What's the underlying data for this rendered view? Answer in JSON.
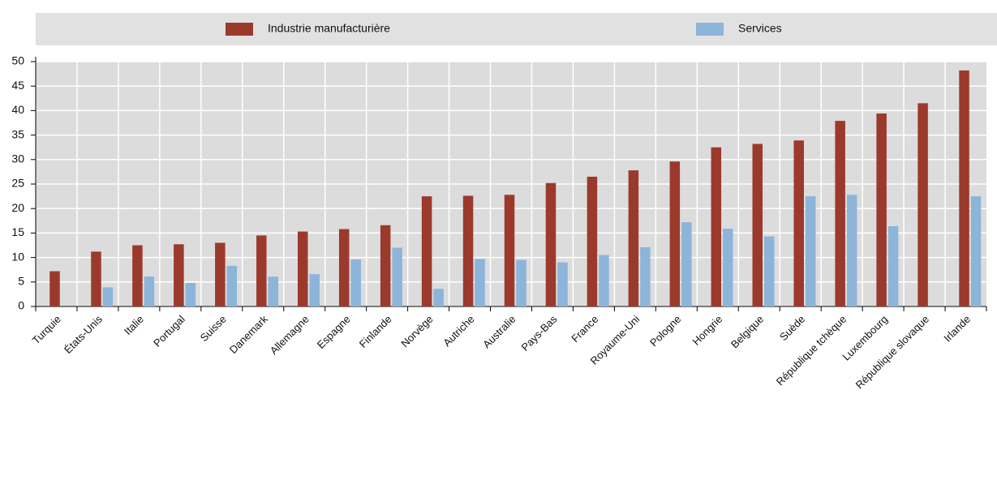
{
  "chart_data": {
    "type": "bar",
    "categories": [
      "Turquie",
      "États-Unis",
      "Italie",
      "Portugal",
      "Suisse",
      "Danemark",
      "Allemagne",
      "Espagne",
      "Finlande",
      "Norvège",
      "Autriche",
      "Australie",
      "Pays-Bas",
      "France",
      "Royaume-Uni",
      "Pologne",
      "Hongrie",
      "Belgique",
      "Suède",
      "République tchèque",
      "Luxembourg",
      "République slovaque",
      "Irlande"
    ],
    "series": [
      {
        "name": "Industrie manufacturière",
        "color": "#9b3a2c",
        "values": [
          7.2,
          11.2,
          12.5,
          12.7,
          13.0,
          14.5,
          15.3,
          15.8,
          16.6,
          22.5,
          22.6,
          22.8,
          25.2,
          26.5,
          27.8,
          29.6,
          32.5,
          33.2,
          33.9,
          37.9,
          39.4,
          41.5,
          48.2
        ]
      },
      {
        "name": "Services",
        "color": "#8db4d9",
        "values": [
          null,
          3.9,
          6.1,
          4.8,
          8.3,
          6.1,
          6.6,
          9.6,
          12.0,
          3.6,
          9.7,
          9.5,
          9.0,
          10.5,
          12.1,
          17.2,
          15.9,
          14.3,
          22.5,
          22.8,
          16.4,
          null,
          22.5
        ]
      }
    ],
    "ylim": [
      0,
      50
    ],
    "yticks": [
      0,
      5,
      10,
      15,
      20,
      25,
      30,
      35,
      40,
      45,
      50
    ],
    "grid": true
  }
}
